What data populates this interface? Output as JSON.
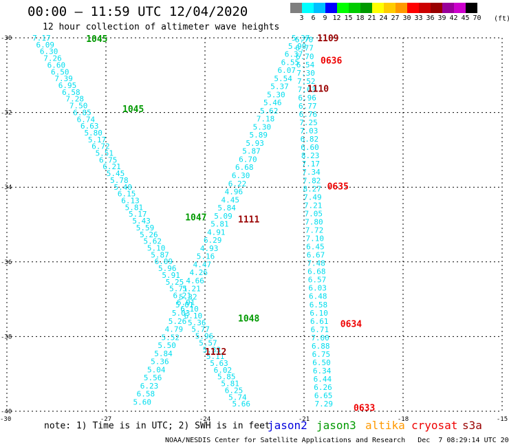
{
  "header": {
    "title": "00:00 – 11:59 UTC 12/04/2020",
    "subtitle": "12 hour collection of altimeter wave heights"
  },
  "legend": {
    "unit": "(ft)",
    "items": [
      {
        "label": "3",
        "color": "#7f7f7f"
      },
      {
        "label": "6",
        "color": "#00ffff"
      },
      {
        "label": "9",
        "color": "#00bfff"
      },
      {
        "label": "12",
        "color": "#0000ff"
      },
      {
        "label": "15",
        "color": "#00ff00"
      },
      {
        "label": "18",
        "color": "#00cc00"
      },
      {
        "label": "21",
        "color": "#009900"
      },
      {
        "label": "24",
        "color": "#ffff00"
      },
      {
        "label": "27",
        "color": "#ffcc00"
      },
      {
        "label": "30",
        "color": "#ff9900"
      },
      {
        "label": "33",
        "color": "#ff0000"
      },
      {
        "label": "36",
        "color": "#cc0000"
      },
      {
        "label": "39",
        "color": "#990000"
      },
      {
        "label": "42",
        "color": "#990099"
      },
      {
        "label": "45",
        "color": "#cc00cc"
      },
      {
        "label": "70",
        "color": "#000000"
      }
    ]
  },
  "chart_data": {
    "type": "scatter",
    "xlim": [
      -30,
      -15
    ],
    "ylim": [
      -40,
      -30
    ],
    "x_ticks": [
      -30,
      -27,
      -24,
      -21,
      -18,
      -15
    ],
    "x_tick_labels": [
      "-30",
      "-27",
      "-24",
      "-21",
      "-18",
      "-15"
    ],
    "y_ticks": [
      -30,
      -32,
      -34,
      -36,
      -38,
      -40
    ],
    "y_tick_labels": [
      "-30",
      "-32",
      "-34",
      "-36",
      "-38",
      "-40"
    ],
    "grid": true,
    "text_color": "#00ddee",
    "series": [
      {
        "name": "jason3",
        "start": [
          -28.95,
          -30.0
        ],
        "end": [
          -22.9,
          -39.8
        ],
        "values": [
          "7.17",
          "6.09",
          "6.30",
          "7.26",
          "6.60",
          "6.50",
          "7.39",
          "6.95",
          "6.58",
          "7.28",
          "7.50",
          "6.85",
          "6.74",
          "6.63",
          "5.80",
          "5.17",
          "6.72",
          "5.51",
          "6.75",
          "6.21",
          "5.45",
          "5.78",
          "5.40",
          "6.15",
          "6.13",
          "5.81",
          "5.17",
          "5.43",
          "5.59",
          "5.26",
          "5.62",
          "5.10",
          "5.87",
          "6.09",
          "5.96",
          "5.91",
          "5.25",
          "5.71",
          "6.21",
          "6.01",
          "6.10",
          "6.10",
          "5.36",
          "5.77",
          "5.96",
          "5.57",
          "5.33",
          "5.11",
          "5.63",
          "6.02",
          "5.85",
          "5.81",
          "6.25",
          "5.74",
          "5.66"
        ]
      },
      {
        "name": "jason3",
        "start": [
          -21.1,
          -30.0
        ],
        "end": [
          -25.9,
          -39.75
        ],
        "values": [
          "5.37",
          "5.90",
          "6.37",
          "6.55",
          "6.07",
          "5.54",
          "5.37",
          "5.30",
          "5.46",
          "5.62",
          "7.18",
          "5.30",
          "5.89",
          "5.93",
          "5.87",
          "6.70",
          "6.68",
          "6.30",
          "6.22",
          "4.96",
          "4.45",
          "5.84",
          "5.09",
          "5.81",
          "4.91",
          "6.29",
          "4.93",
          "5.16",
          "4.47",
          "4.26",
          "4.66",
          "5.21",
          "5.32",
          "5.01",
          "5.03",
          "5.26",
          "4.79",
          "5.52",
          "5.50",
          "5.84",
          "5.36",
          "5.04",
          "5.56",
          "6.23",
          "6.58",
          "5.60"
        ]
      },
      {
        "name": "jason2",
        "start": [
          -21.0,
          -30.05
        ],
        "end": [
          -20.4,
          -39.8
        ],
        "values": [
          "6.70",
          "6.77",
          "6.70",
          "6.54",
          "7.30",
          "7.52",
          "7.63",
          "6.96",
          "6.77",
          "6.76",
          "7.25",
          "7.03",
          "6.82",
          "6.60",
          "8.23",
          "7.17",
          "7.34",
          "7.82",
          "8.27",
          "7.49",
          "7.21",
          "7.05",
          "7.80",
          "7.72",
          "7.10",
          "6.45",
          "6.67",
          "7.48",
          "6.68",
          "6.57",
          "6.03",
          "6.48",
          "6.58",
          "6.10",
          "6.61",
          "6.71",
          "7.00",
          "6.88",
          "6.75",
          "6.50",
          "6.34",
          "6.44",
          "6.26",
          "6.65",
          "7.29"
        ]
      }
    ],
    "time_labels": [
      {
        "text": "1045",
        "color": "#009900",
        "lon": -27.6,
        "lat": -30.02
      },
      {
        "text": "1045",
        "color": "#009900",
        "lon": -26.5,
        "lat": -31.9
      },
      {
        "text": "1047",
        "color": "#009900",
        "lon": -24.6,
        "lat": -34.8
      },
      {
        "text": "1048",
        "color": "#009900",
        "lon": -23.0,
        "lat": -37.5
      },
      {
        "text": "1109",
        "color": "#990000",
        "lon": -20.6,
        "lat": -30.0
      },
      {
        "text": "1110",
        "color": "#990000",
        "lon": -20.9,
        "lat": -31.35
      },
      {
        "text": "1111",
        "color": "#990000",
        "lon": -23.0,
        "lat": -34.85
      },
      {
        "text": "1112",
        "color": "#990000",
        "lon": -24.0,
        "lat": -38.4
      },
      {
        "text": "0636",
        "color": "#ee0000",
        "lon": -20.5,
        "lat": -30.6
      },
      {
        "text": "0635",
        "color": "#ee0000",
        "lon": -20.3,
        "lat": -33.97
      },
      {
        "text": "0634",
        "color": "#ee0000",
        "lon": -19.9,
        "lat": -37.65
      },
      {
        "text": "0633",
        "color": "#ee0000",
        "lon": -19.5,
        "lat": -39.9
      }
    ]
  },
  "note": "note: 1) Time is in UTC; 2) SWH is in feet",
  "satellites": [
    {
      "name": "jason2",
      "color": "#0000dd"
    },
    {
      "name": "jason3",
      "color": "#009900"
    },
    {
      "name": "altika",
      "color": "#ff9900"
    },
    {
      "name": "cryosat",
      "color": "#ee0000"
    },
    {
      "name": "s3a",
      "color": "#990000"
    }
  ],
  "footer": "NOAA/NESDIS Center for Satellite Applications and Research   Dec  7 08:29:14 UTC 2020"
}
